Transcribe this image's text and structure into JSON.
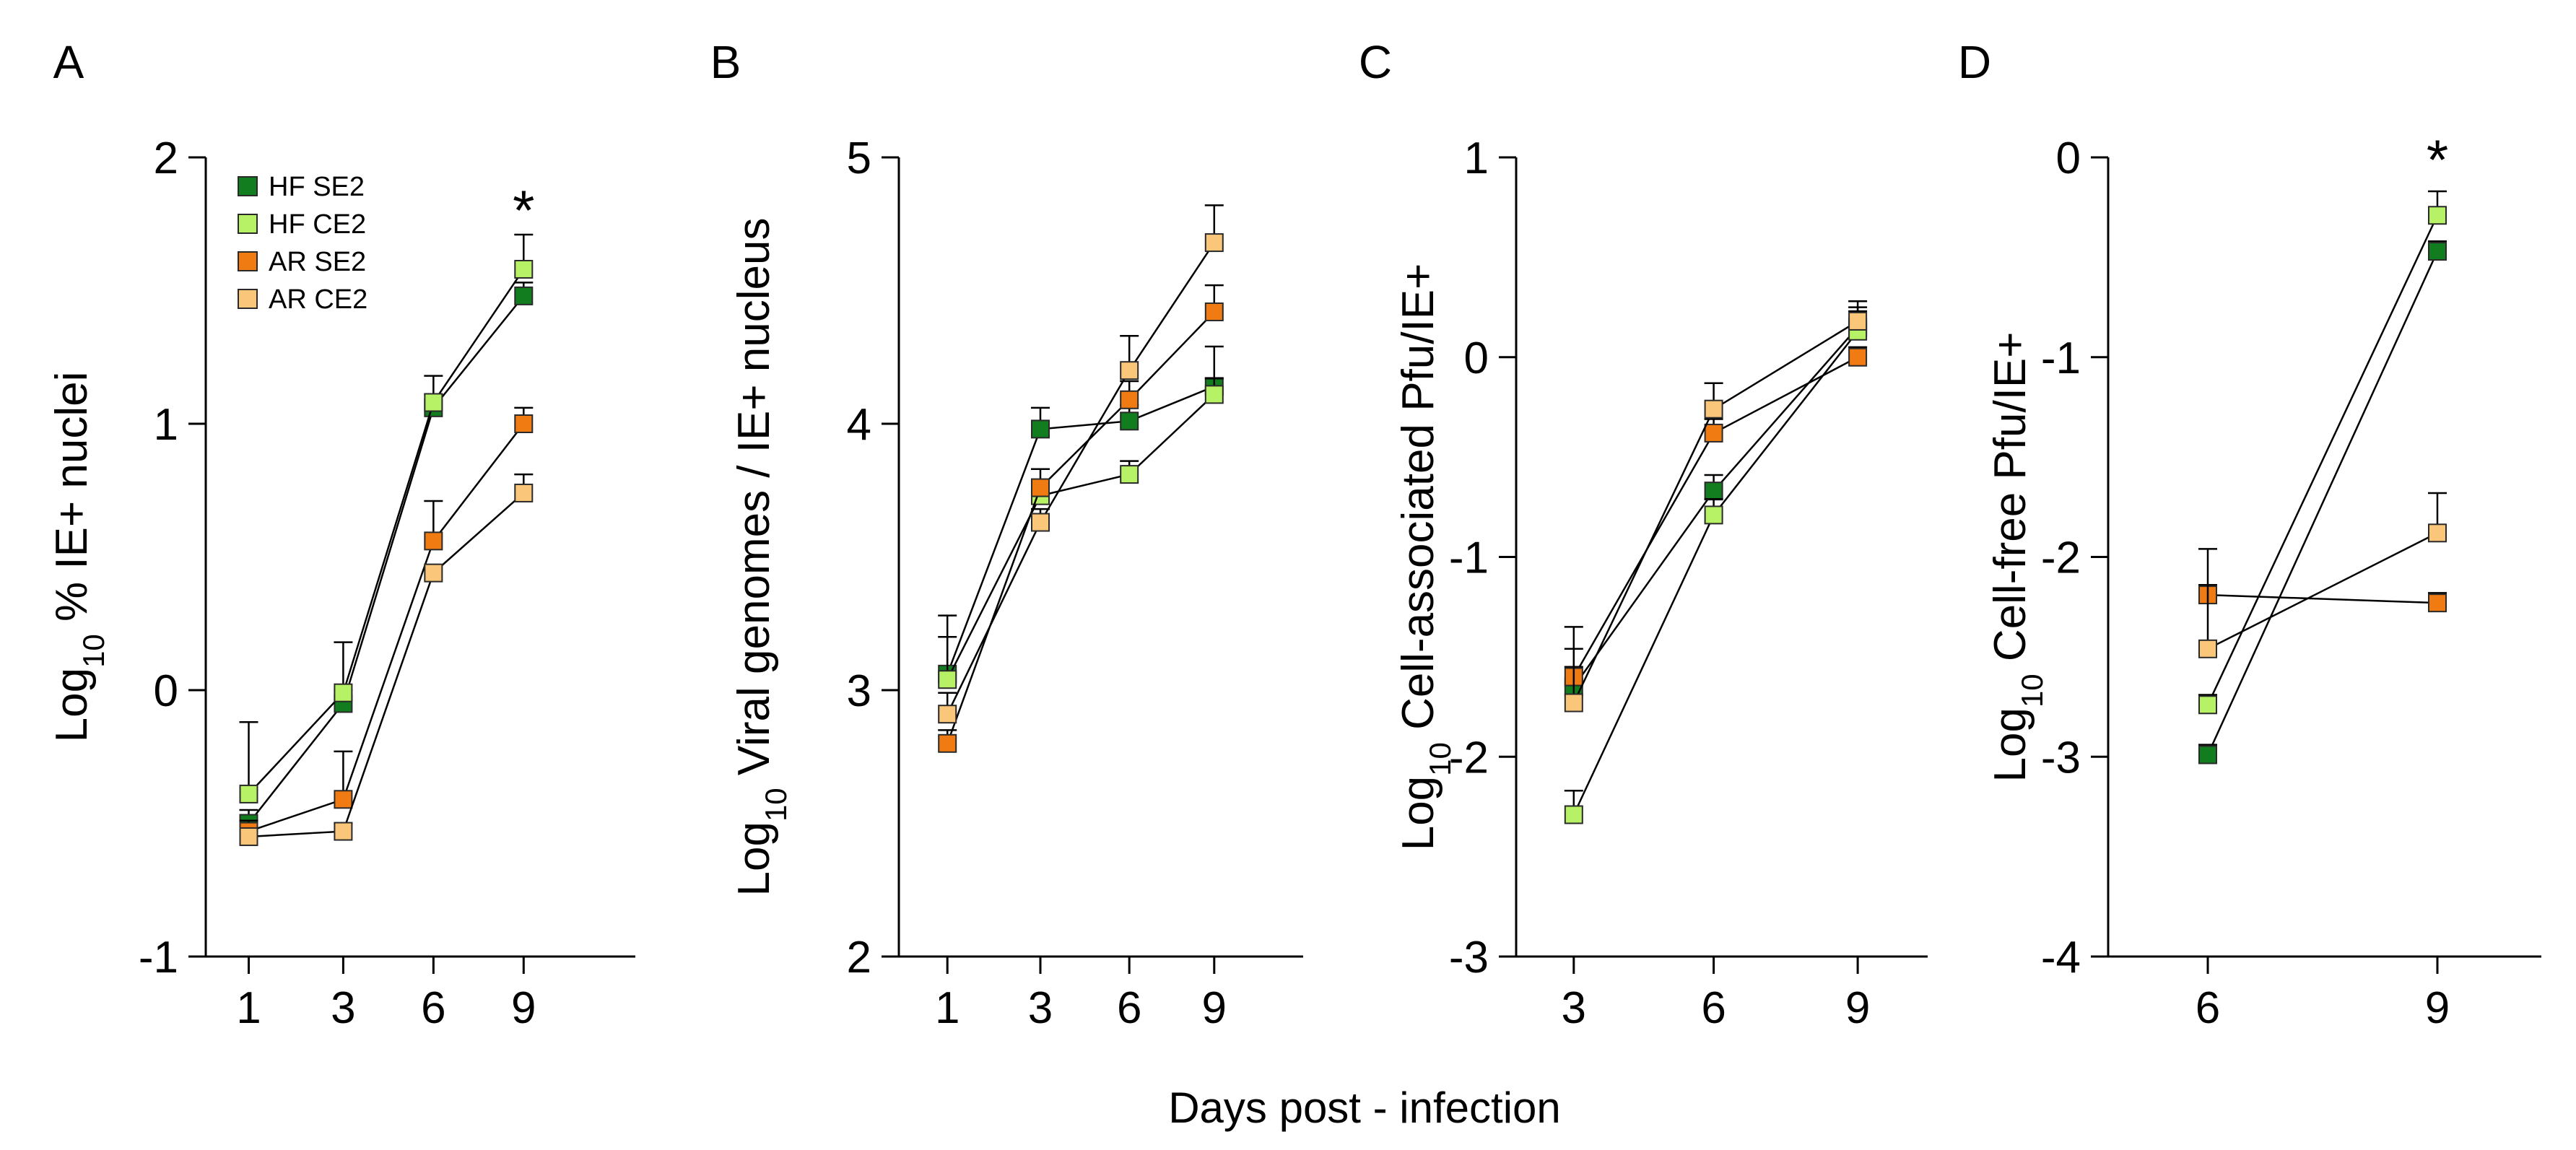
{
  "colors": {
    "HF SE2": "#127d1e",
    "HF CE2": "#b7f266",
    "AR SE2": "#f07b12",
    "AR CE2": "#f9c67a",
    "axis": "#000000"
  },
  "x_axis_title": "Days post - infection",
  "legend": [
    "HF SE2",
    "HF CE2",
    "AR SE2",
    "AR CE2"
  ],
  "chart_data": [
    {
      "type": "line",
      "panel": "A",
      "ylabel_prefix": "Log",
      "ylabel_subscript": "10",
      "ylabel_suffix": " % IE+ nuclei",
      "ylim": [
        -1,
        2
      ],
      "yticks": [
        "2",
        "1",
        "0",
        "-1"
      ],
      "ytick_values": [
        2,
        1,
        0,
        -1
      ],
      "categories": [
        "1",
        "3",
        "6",
        "9"
      ],
      "grid": false,
      "annotation": "*",
      "annotation_category": "9",
      "annotation_value": 1.81,
      "series": [
        {
          "name": "HF SE2",
          "values": [
            -0.5,
            -0.05,
            1.06,
            1.48
          ],
          "errors": [
            0.05,
            0.05,
            0.05,
            0.05
          ]
        },
        {
          "name": "HF CE2",
          "values": [
            -0.39,
            -0.01,
            1.08,
            1.58
          ],
          "errors": [
            0.27,
            0.19,
            0.1,
            0.13
          ]
        },
        {
          "name": "AR SE2",
          "values": [
            -0.53,
            -0.41,
            0.56,
            1.0
          ],
          "errors": [
            0.04,
            0.18,
            0.15,
            0.06
          ]
        },
        {
          "name": "AR CE2",
          "values": [
            -0.55,
            -0.53,
            0.44,
            0.74
          ],
          "errors": [
            0.03,
            0.03,
            0.03,
            0.07
          ]
        }
      ]
    },
    {
      "type": "line",
      "panel": "B",
      "ylabel_prefix": "Log",
      "ylabel_subscript": "10",
      "ylabel_suffix": " Viral genomes / IE+ nucleus",
      "ylim": [
        2,
        5
      ],
      "yticks": [
        "5",
        "4",
        "3",
        "2"
      ],
      "ytick_values": [
        5,
        4,
        3,
        2
      ],
      "categories": [
        "1",
        "3",
        "6",
        "9"
      ],
      "grid": false,
      "series": [
        {
          "name": "HF SE2",
          "values": [
            3.06,
            3.98,
            4.01,
            4.14
          ],
          "errors": [
            0.22,
            0.08,
            0.06,
            0.15
          ]
        },
        {
          "name": "HF CE2",
          "values": [
            3.04,
            3.73,
            3.81,
            4.11
          ],
          "errors": [
            0.16,
            0.06,
            0.05,
            0.06
          ]
        },
        {
          "name": "AR SE2",
          "values": [
            2.8,
            3.76,
            4.09,
            4.42
          ],
          "errors": [
            0.05,
            0.07,
            0.07,
            0.1
          ]
        },
        {
          "name": "AR CE2",
          "values": [
            2.91,
            3.63,
            4.2,
            4.68
          ],
          "errors": [
            0.08,
            0.05,
            0.13,
            0.14
          ]
        }
      ]
    },
    {
      "type": "line",
      "panel": "C",
      "ylabel_prefix": "Log",
      "ylabel_subscript": "10",
      "ylabel_suffix": " Cell-associated Pfu/IE+",
      "ylim": [
        -3,
        1
      ],
      "yticks": [
        "1",
        "0",
        "-1",
        "-2",
        "-3"
      ],
      "ytick_values": [
        1,
        0,
        -1,
        -2,
        -3
      ],
      "categories": [
        "3",
        "6",
        "9"
      ],
      "grid": false,
      "series": [
        {
          "name": "HF SE2",
          "values": [
            -1.65,
            -0.67,
            0.15
          ],
          "errors": [
            0.1,
            0.08,
            0.1
          ]
        },
        {
          "name": "HF CE2",
          "values": [
            -2.29,
            -0.79,
            0.13
          ],
          "errors": [
            0.12,
            0.08,
            0.1
          ]
        },
        {
          "name": "AR SE2",
          "values": [
            -1.6,
            -0.38,
            0.0
          ],
          "errors": [
            0.14,
            0.07,
            0.05
          ]
        },
        {
          "name": "AR CE2",
          "values": [
            -1.73,
            -0.26,
            0.18
          ],
          "errors": [
            0.38,
            0.13,
            0.1
          ]
        }
      ]
    },
    {
      "type": "line",
      "panel": "D",
      "ylabel_prefix": "Log",
      "ylabel_subscript": "10",
      "ylabel_suffix": " Cell-free Pfu/IE+",
      "ylim": [
        -4,
        0
      ],
      "yticks": [
        "0",
        "-1",
        "-2",
        "-3",
        "-4"
      ],
      "ytick_values": [
        0,
        -1,
        -2,
        -3,
        -4
      ],
      "categories": [
        "6",
        "9"
      ],
      "grid": false,
      "annotation": "*",
      "annotation_category": "9",
      "annotation_value": 0.0,
      "series": [
        {
          "name": "HF SE2",
          "values": [
            -2.99,
            -0.47
          ],
          "errors": [
            0.05,
            0.05
          ]
        },
        {
          "name": "HF CE2",
          "values": [
            -2.74,
            -0.29
          ],
          "errors": [
            0.05,
            0.12
          ]
        },
        {
          "name": "AR SE2",
          "values": [
            -2.19,
            -2.23
          ],
          "errors": [
            0.05,
            0.05
          ]
        },
        {
          "name": "AR CE2",
          "values": [
            -2.46,
            -1.88
          ],
          "errors": [
            0.5,
            0.2
          ]
        }
      ]
    }
  ]
}
